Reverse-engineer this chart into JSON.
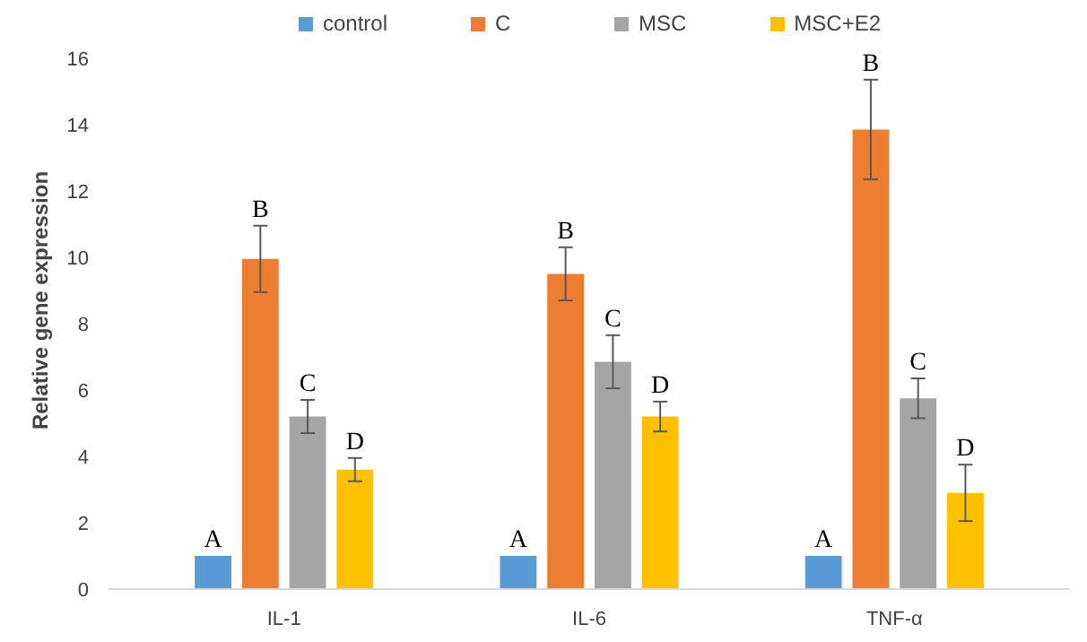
{
  "chart_data": {
    "type": "bar",
    "ylabel": "Relative gene expression",
    "categories": [
      "IL-1",
      "IL-6",
      "TNF-α"
    ],
    "series": [
      {
        "name": "control",
        "color": "#5b9bd5",
        "values": [
          1,
          1,
          1
        ],
        "errors": [
          null,
          null,
          null
        ],
        "value_labels": [
          "A",
          "A",
          "A"
        ]
      },
      {
        "name": "C",
        "color": "#ed7d31",
        "values": [
          9.95,
          9.5,
          13.85
        ],
        "errors": [
          1.0,
          0.8,
          1.5
        ],
        "value_labels": [
          "B",
          "B",
          "B"
        ]
      },
      {
        "name": "MSC",
        "color": "#a5a5a5",
        "values": [
          5.2,
          6.85,
          5.75
        ],
        "errors": [
          0.5,
          0.8,
          0.6
        ],
        "value_labels": [
          "C",
          "C",
          "C"
        ]
      },
      {
        "name": "MSC+E2",
        "color": "#ffc000",
        "values": [
          3.6,
          5.2,
          2.9
        ],
        "errors": [
          0.35,
          0.45,
          0.85
        ],
        "value_labels": [
          "D",
          "D",
          "D"
        ]
      }
    ],
    "ylim": [
      0,
      17.4
    ],
    "yticks": [
      0,
      2,
      4,
      6,
      8,
      10,
      12,
      14,
      16
    ],
    "grid": false,
    "legend": "top"
  }
}
